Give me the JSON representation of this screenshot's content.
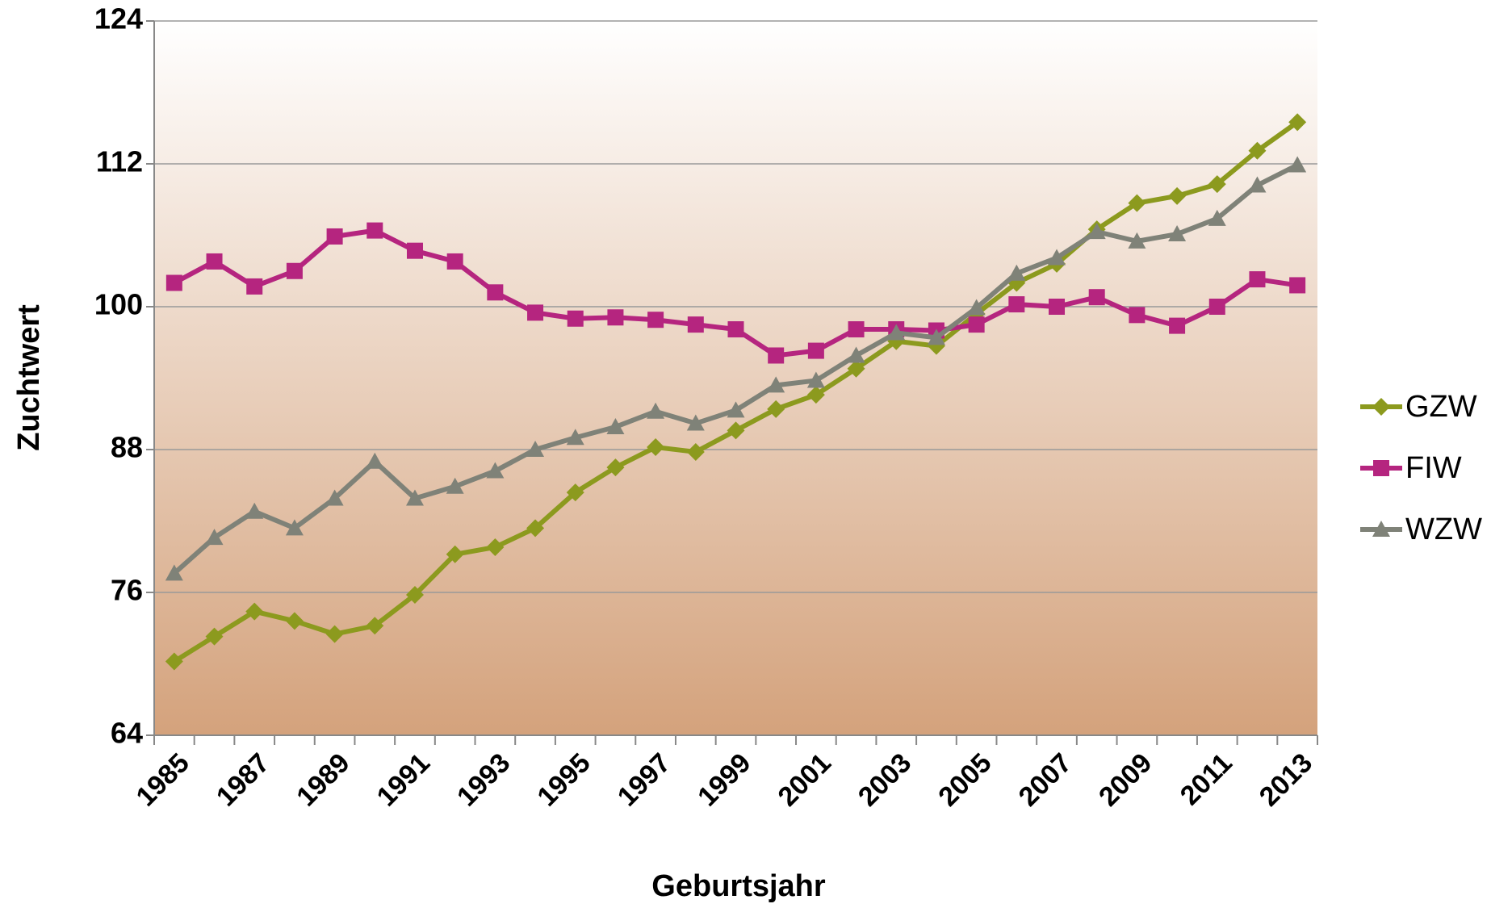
{
  "chart_data": {
    "type": "line",
    "x_label": "Geburtsjahr",
    "y_label": "Zuchtwert",
    "categories": [
      "1985",
      null,
      "1987",
      null,
      "1989",
      null,
      "1991",
      null,
      "1993",
      null,
      "1995",
      null,
      "1997",
      null,
      "1999",
      null,
      "2001",
      null,
      "2003",
      null,
      "2005",
      null,
      "2007",
      null,
      "2009",
      null,
      "2011",
      null,
      "2013"
    ],
    "series": [
      {
        "name": "GZW",
        "color": "#8c9a1e",
        "marker": "diamond",
        "values": [
          70.2,
          72.3,
          74.4,
          73.6,
          72.5,
          73.2,
          75.8,
          79.2,
          79.8,
          81.4,
          84.4,
          86.5,
          88.2,
          87.8,
          89.6,
          91.4,
          92.6,
          94.8,
          97.1,
          96.7,
          99.4,
          102.0,
          103.6,
          106.5,
          108.7,
          109.3,
          110.3,
          113.1,
          115.5
        ]
      },
      {
        "name": "FIW",
        "color": "#b5257f",
        "marker": "square",
        "values": [
          102.0,
          103.8,
          101.7,
          103.0,
          105.9,
          106.4,
          104.7,
          103.8,
          101.2,
          99.5,
          99.0,
          99.1,
          98.9,
          98.5,
          98.1,
          95.9,
          96.3,
          98.1,
          98.1,
          98.0,
          98.5,
          100.2,
          100.0,
          100.8,
          99.3,
          98.4,
          100.0,
          102.3,
          101.8
        ]
      },
      {
        "name": "WZW",
        "color": "#7f8278",
        "marker": "triangle",
        "values": [
          77.6,
          80.6,
          82.8,
          81.4,
          83.9,
          87.0,
          83.9,
          84.9,
          86.2,
          88.0,
          89.0,
          89.9,
          91.2,
          90.2,
          91.3,
          93.4,
          93.8,
          95.9,
          97.8,
          97.4,
          99.9,
          102.8,
          104.1,
          106.3,
          105.5,
          106.1,
          107.4,
          110.2,
          111.9
        ]
      }
    ],
    "ylim": [
      64,
      124
    ],
    "yticks": [
      64,
      76,
      88,
      100,
      112,
      124
    ],
    "grid": true,
    "legend": "right"
  }
}
